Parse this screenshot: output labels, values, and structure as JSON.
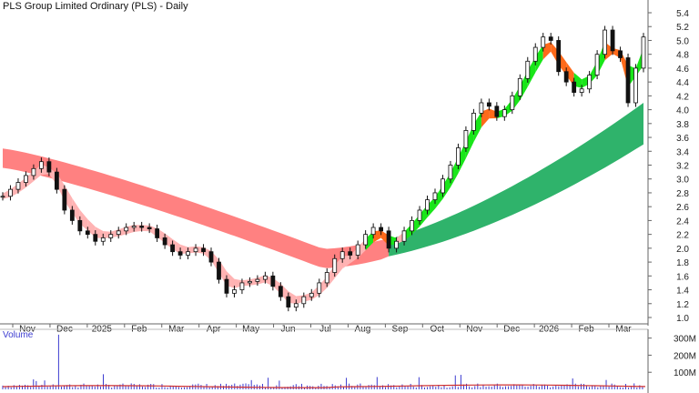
{
  "header": {
    "title": "PLS Group Limited Ordinary (PLS) - Daily"
  },
  "volume_panel": {
    "label": "Volume"
  },
  "chart_data": {
    "type": "candlestick",
    "title": "PLS Group Limited Ordinary (PLS) - Daily",
    "xlabel": "",
    "ylabel": "",
    "x_tick_labels": [
      "Nov",
      "Dec",
      "2025",
      "Feb",
      "Mar",
      "Apr",
      "May",
      "Jun",
      "Jul",
      "Aug",
      "Sep",
      "Oct",
      "Nov",
      "Dec",
      "2026",
      "Feb",
      "Mar"
    ],
    "y_tick_labels": [
      "1.0",
      "1.2",
      "1.4",
      "1.6",
      "1.8",
      "2.0",
      "2.2",
      "2.4",
      "2.6",
      "2.8",
      "3.0",
      "3.2",
      "3.4",
      "3.6",
      "3.8",
      "4.0",
      "4.2",
      "4.4",
      "4.6",
      "4.8",
      "5.0",
      "5.2",
      "5.4"
    ],
    "ylim": [
      1.0,
      5.4
    ],
    "price_close_approx": [
      2.75,
      2.85,
      2.95,
      3.05,
      3.15,
      3.25,
      3.1,
      2.85,
      2.55,
      2.4,
      2.25,
      2.2,
      2.1,
      2.15,
      2.2,
      2.25,
      2.3,
      2.32,
      2.3,
      2.28,
      2.15,
      2.05,
      1.95,
      1.9,
      1.95,
      2.0,
      1.95,
      1.8,
      1.55,
      1.35,
      1.4,
      1.5,
      1.52,
      1.55,
      1.6,
      1.45,
      1.3,
      1.15,
      1.2,
      1.3,
      1.35,
      1.5,
      1.65,
      1.85,
      1.95,
      1.9,
      2.05,
      2.2,
      2.3,
      2.25,
      2.0,
      2.1,
      2.25,
      2.4,
      2.55,
      2.7,
      2.8,
      3.0,
      3.2,
      3.45,
      3.7,
      3.95,
      4.1,
      4.05,
      3.9,
      4.0,
      4.2,
      4.45,
      4.7,
      4.9,
      5.05,
      5.0,
      4.55,
      4.4,
      4.25,
      4.3,
      4.5,
      4.8,
      5.15,
      4.85,
      4.75,
      4.1,
      4.6,
      5.05
    ],
    "series": [
      {
        "name": "",
        "kind": "short-term-mma-ribbon",
        "colors": [
          "#19e619",
          "#ff6a1a",
          "#ffb3b3"
        ]
      },
      {
        "name": "",
        "kind": "long-term-mma-ribbon",
        "colors": [
          "#2fb36b",
          "#ff6b6b"
        ]
      },
      {
        "name": "",
        "kind": "volume",
        "color": "#3b3bd0",
        "average_color": "#d03030"
      }
    ],
    "volume_ticks": [
      "300M",
      "200M",
      "100M"
    ],
    "volume_spike_index": 12,
    "grid": false,
    "legend": "none"
  }
}
